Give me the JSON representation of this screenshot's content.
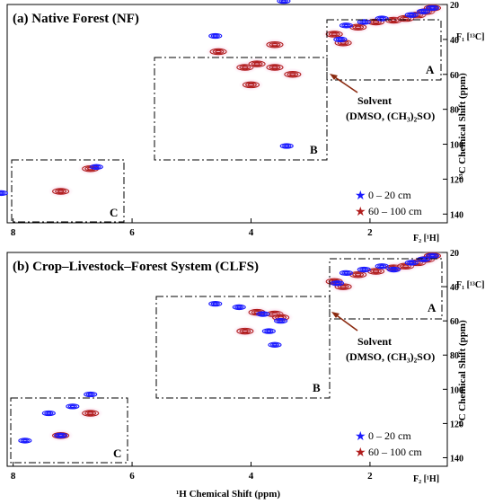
{
  "chart_data": [
    {
      "type": "scatter",
      "panel": "(a)",
      "title": "(a) Native Forest (NF)",
      "xlabel": "",
      "ylabel": "¹³C Chemical Shift (ppm)",
      "x_axis_label": "F₂ [¹H]",
      "y_axis_label": "F₁ [¹³C]",
      "xlim": [
        8.1,
        0.7
      ],
      "ylim": [
        145,
        20
      ],
      "x_ticks": [
        "8",
        "6",
        "4",
        "2"
      ],
      "y_ticks": [
        "20",
        "40",
        "60",
        "80",
        "100",
        "120",
        "140"
      ],
      "regions": [
        {
          "label": "A",
          "x": [
            2.5,
            0.75
          ],
          "y": [
            22,
            50
          ]
        },
        {
          "label": "B",
          "x": [
            5.5,
            2.5
          ],
          "y": [
            34,
            104
          ]
        },
        {
          "label": "C",
          "x": [
            8.0,
            6.05
          ],
          "y": [
            104,
            145
          ]
        }
      ],
      "annotation": {
        "line1": "Solvent",
        "line2": "(DMSO, (CH₃)₂SO)",
        "x": 2.45,
        "y": 40
      },
      "series": [
        {
          "name": "0 – 20 cm",
          "color": "#1a1aff",
          "x": [
            2.5,
            2.4,
            2.1,
            1.8,
            1.3,
            1.1,
            0.95,
            3.45,
            4.6,
            3.4,
            8.2,
            6.6
          ],
          "y": [
            40,
            32,
            30,
            28,
            26,
            24,
            22,
            18,
            38,
            101,
            128,
            113
          ]
        },
        {
          "name": "60 – 100 cm",
          "color": "#b01c1c",
          "x": [
            2.6,
            2.45,
            2.2,
            1.9,
            1.6,
            1.4,
            1.2,
            1.05,
            0.95,
            4.55,
            4.1,
            3.9,
            3.6,
            3.3,
            4.0,
            3.6,
            7.2,
            6.7
          ],
          "y": [
            37,
            42,
            33,
            30,
            29,
            28,
            26,
            24,
            22,
            47,
            56,
            54,
            56,
            60,
            66,
            43,
            127,
            114
          ]
        }
      ]
    },
    {
      "type": "scatter",
      "panel": "(b)",
      "title": "(b) Crop–Livestock–Forest System (CLFS)",
      "xlabel": "¹H Chemical Shift (ppm)",
      "ylabel": "¹³C Chemical Shift (ppm)",
      "x_axis_label": "F₂ [¹H]",
      "y_axis_label": "F₁ [¹³C]",
      "xlim": [
        8.1,
        0.7
      ],
      "ylim": [
        145,
        20
      ],
      "x_ticks": [
        "8",
        "6",
        "4",
        "2"
      ],
      "y_ticks": [
        "20",
        "40",
        "60",
        "80",
        "100",
        "120",
        "140"
      ],
      "regions": [
        {
          "label": "A",
          "x": [
            2.4,
            0.75
          ],
          "y": [
            22,
            50
          ]
        },
        {
          "label": "B",
          "x": [
            5.5,
            2.5
          ],
          "y": [
            33,
            104
          ]
        },
        {
          "label": "C",
          "x": [
            8.0,
            6.05
          ],
          "y": [
            104,
            145
          ]
        }
      ],
      "annotation": {
        "line1": "Solvent",
        "line2": "(DMSO, (CH₃)₂SO)",
        "x": 2.45,
        "y": 40
      },
      "series": [
        {
          "name": "0 – 20 cm",
          "color": "#1a1aff",
          "x": [
            2.4,
            2.1,
            1.8,
            1.6,
            1.3,
            1.1,
            0.95,
            2.55,
            4.6,
            4.2,
            3.8,
            3.5,
            3.7,
            3.6,
            7.4,
            7.0,
            6.7,
            7.8,
            7.2
          ],
          "y": [
            32,
            30,
            28,
            30,
            26,
            24,
            22,
            38,
            50,
            52,
            56,
            60,
            66,
            74,
            114,
            110,
            103,
            130,
            127
          ]
        },
        {
          "name": "60 – 100 cm",
          "color": "#b01c1c",
          "x": [
            2.6,
            2.45,
            2.2,
            1.9,
            1.6,
            1.4,
            1.2,
            1.05,
            0.95,
            3.9,
            3.6,
            3.5,
            4.1,
            7.2,
            6.7
          ],
          "y": [
            37,
            40,
            33,
            31,
            29,
            28,
            26,
            24,
            22,
            55,
            56,
            58,
            66,
            127,
            114
          ]
        }
      ]
    }
  ],
  "legend": {
    "item1": "0 – 20 cm",
    "item2": "60 – 100 cm"
  }
}
